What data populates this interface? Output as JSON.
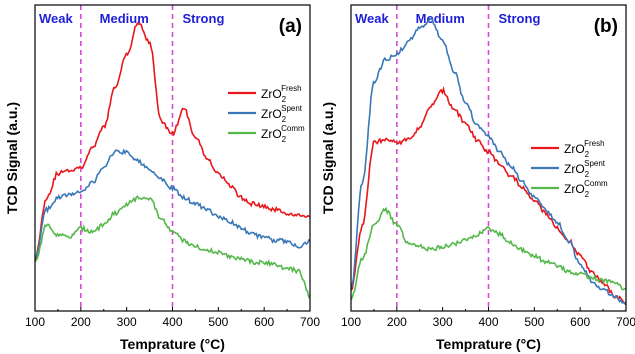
{
  "chart_data": [
    {
      "type": "line",
      "panel_label": "(a)",
      "xlabel": "Temprature (°C)",
      "ylabel": "TCD Signal (a.u.)",
      "xlim": [
        100,
        700
      ],
      "ylim": [
        0,
        100
      ],
      "xticks": [
        "100",
        "200",
        "300",
        "400",
        "500",
        "600",
        "700"
      ],
      "x": [
        100,
        125,
        150,
        175,
        200,
        225,
        250,
        275,
        300,
        325,
        350,
        375,
        400,
        425,
        450,
        475,
        500,
        525,
        550,
        575,
        600,
        625,
        650,
        675,
        700
      ],
      "series": [
        {
          "base": "ZrO",
          "sub": "2",
          "sup": "Fresh",
          "color": "#e8171c",
          "values": [
            17,
            37,
            45,
            46,
            47,
            53,
            60,
            73,
            84,
            94,
            88,
            62,
            58,
            66,
            57,
            50,
            45,
            41,
            37,
            35,
            34,
            33,
            32,
            31,
            31
          ]
        },
        {
          "base": "ZrO",
          "sub": "2",
          "sup": "Spent",
          "color": "#3a78b8",
          "values": [
            17,
            33,
            37,
            38,
            39,
            42,
            47,
            52,
            52,
            49,
            46,
            43,
            40,
            37,
            35,
            33,
            31,
            29,
            27,
            25,
            24,
            23,
            23,
            21,
            23
          ]
        },
        {
          "base": "ZrO",
          "sub": "2",
          "sup": "Comm",
          "color": "#55b84a",
          "values": [
            16,
            28,
            25,
            24,
            27,
            26,
            28,
            32,
            35,
            37,
            37,
            30,
            26,
            23,
            21,
            20,
            19,
            18,
            17,
            16,
            16,
            15,
            14,
            13,
            5
          ]
        }
      ],
      "regions": [
        {
          "label": "Weak",
          "from": 100,
          "to": 200
        },
        {
          "label": "Medium",
          "from": 200,
          "to": 400
        },
        {
          "label": "Strong",
          "from": 400,
          "to": 700
        }
      ],
      "dividers": [
        200,
        400
      ],
      "legend_position": "right-center",
      "grid": false
    },
    {
      "type": "line",
      "panel_label": "(b)",
      "xlabel": "Temprature (°C)",
      "ylabel": "TCD Signal (a.u.)",
      "xlim": [
        100,
        700
      ],
      "ylim": [
        0,
        100
      ],
      "xticks": [
        "100",
        "200",
        "300",
        "400",
        "500",
        "600",
        "700"
      ],
      "x": [
        100,
        125,
        150,
        175,
        200,
        225,
        250,
        275,
        300,
        325,
        350,
        375,
        400,
        425,
        450,
        475,
        500,
        525,
        550,
        575,
        600,
        625,
        650,
        675,
        700
      ],
      "series": [
        {
          "base": "ZrO",
          "sub": "2",
          "sup": "Fresh",
          "color": "#e8171c",
          "values": [
            7,
            28,
            55,
            56,
            55,
            56,
            60,
            67,
            72,
            66,
            61,
            56,
            52,
            48,
            44,
            40,
            36,
            32,
            27,
            23,
            18,
            13,
            9,
            5,
            3
          ]
        },
        {
          "base": "ZrO",
          "sub": "2",
          "sup": "Spent",
          "color": "#3a78b8",
          "values": [
            7,
            42,
            75,
            82,
            84,
            88,
            93,
            95,
            88,
            78,
            68,
            61,
            57,
            52,
            47,
            42,
            37,
            33,
            29,
            23,
            15,
            10,
            7,
            5,
            2
          ]
        },
        {
          "base": "ZrO",
          "sub": "2",
          "sup": "Comm",
          "color": "#55b84a",
          "values": [
            4,
            17,
            28,
            33,
            28,
            22,
            21,
            20,
            21,
            22,
            23,
            25,
            27,
            25,
            22,
            20,
            18,
            16,
            15,
            13,
            12,
            11,
            10,
            9,
            7
          ]
        }
      ],
      "regions": [
        {
          "label": "Weak",
          "from": 100,
          "to": 200
        },
        {
          "label": "Medium",
          "from": 200,
          "to": 400
        },
        {
          "label": "Strong",
          "from": 400,
          "to": 700
        }
      ],
      "dividers": [
        200,
        400
      ],
      "legend_position": "right-center",
      "grid": false
    }
  ],
  "colors": {
    "divider": "#d54bd6",
    "region_text": "#1f1fd6",
    "axis": "#000000"
  }
}
